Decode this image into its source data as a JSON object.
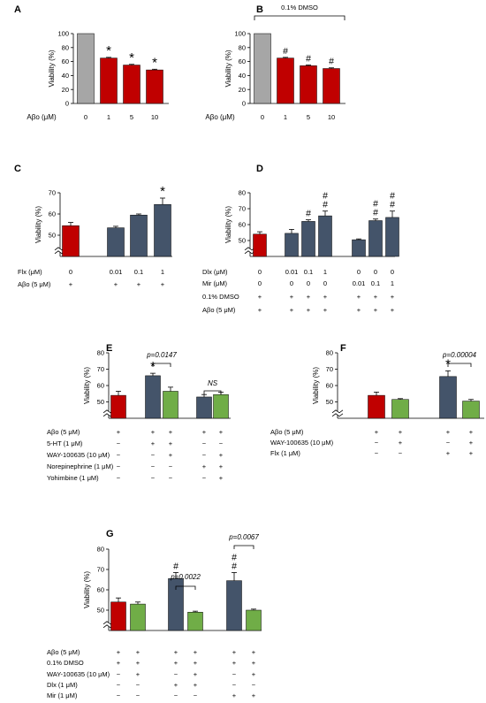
{
  "chart_data": [
    {
      "panel": "A",
      "type": "bar",
      "ylabel": "Viability (%)",
      "ylim": [
        0,
        100
      ],
      "yticks": [
        "0",
        "20",
        "40",
        "60",
        "80",
        "100"
      ],
      "xlabel": "Aβo (μM)",
      "categories": [
        "0",
        "1",
        "5",
        "10"
      ],
      "values": [
        100,
        65,
        55,
        48
      ],
      "errors": [
        0,
        1,
        1,
        1
      ],
      "colors": [
        "#a6a6a6",
        "#c00000",
        "#c00000",
        "#c00000"
      ],
      "marks": [
        "",
        "*",
        "*",
        "*"
      ]
    },
    {
      "panel": "B",
      "type": "bar",
      "ylabel": "Viability (%)",
      "ylim": [
        0,
        100
      ],
      "yticks": [
        "0",
        "20",
        "40",
        "60",
        "80",
        "100"
      ],
      "xlabel": "Aβo (μM)",
      "categories": [
        "0",
        "1",
        "5",
        "10"
      ],
      "values": [
        100,
        65,
        54,
        50
      ],
      "errors": [
        0,
        1,
        1,
        1
      ],
      "colors": [
        "#a6a6a6",
        "#c00000",
        "#c00000",
        "#c00000"
      ],
      "marks": [
        "",
        "#",
        "#",
        "#"
      ],
      "bracket_label": "0.1% DMSO"
    },
    {
      "panel": "C",
      "type": "bar",
      "ylabel": "Viability (%)",
      "ylim": [
        40,
        70
      ],
      "axis_break": true,
      "yticks": [
        "50",
        "60",
        "70"
      ],
      "values": [
        54.5,
        53.5,
        59.5,
        64.5
      ],
      "errors": [
        1.5,
        0.7,
        0.5,
        3
      ],
      "colors": [
        "#c00000",
        "#44546a",
        "#44546a",
        "#44546a"
      ],
      "marks": [
        "",
        "",
        "",
        "*"
      ],
      "condition_rows": [
        {
          "label": "Flx (μM)",
          "values": [
            "0",
            "0.01",
            "0.1",
            "1"
          ]
        },
        {
          "label": "Aβo (5 μM)",
          "values": [
            "+",
            "+",
            "+",
            "+"
          ]
        }
      ]
    },
    {
      "panel": "D",
      "type": "bar",
      "ylabel": "Viability (%)",
      "ylim": [
        40,
        80
      ],
      "axis_break": true,
      "yticks": [
        "50",
        "60",
        "70",
        "80"
      ],
      "values": [
        54,
        54.5,
        62,
        65.5,
        50.5,
        62.5,
        64.5
      ],
      "errors": [
        1.5,
        2.5,
        1,
        3,
        0.5,
        1,
        4
      ],
      "colors": [
        "#c00000",
        "#44546a",
        "#44546a",
        "#44546a",
        "#44546a",
        "#44546a",
        "#44546a"
      ],
      "marks": [
        "",
        "",
        "#",
        "##",
        "",
        "##",
        "##"
      ],
      "condition_rows": [
        {
          "label": "Dlx (μM)",
          "values": [
            "0",
            "0.01",
            "0.1",
            "1",
            "0",
            "0",
            "0"
          ]
        },
        {
          "label": "Mir (μM)",
          "values": [
            "0",
            "0",
            "0",
            "0",
            "0.01",
            "0.1",
            "1"
          ]
        },
        {
          "label": "0.1% DMSO",
          "values": [
            "+",
            "+",
            "+",
            "+",
            "+",
            "+",
            "+"
          ]
        },
        {
          "label": "Aβo (5 μM)",
          "values": [
            "+",
            "+",
            "+",
            "+",
            "+",
            "+",
            "+"
          ]
        }
      ]
    },
    {
      "panel": "E",
      "type": "bar",
      "ylabel": "Viability (%)",
      "ylim": [
        40,
        80
      ],
      "axis_break": true,
      "yticks": [
        "50",
        "60",
        "70",
        "80"
      ],
      "values": [
        54,
        66,
        56.5,
        53,
        54.5
      ],
      "errors": [
        2.5,
        1.5,
        2.5,
        1.5,
        1.5
      ],
      "colors": [
        "#c00000",
        "#44546a",
        "#70ad47",
        "#44546a",
        "#70ad47"
      ],
      "marks": [
        "",
        "*",
        "",
        "",
        ""
      ],
      "annotations": [
        {
          "text": "p=0.0147",
          "from": 1,
          "to": 2
        },
        {
          "text": "NS",
          "from": 3,
          "to": 4
        }
      ],
      "condition_rows": [
        {
          "label": "Aβo (5 μM)",
          "values": [
            "+",
            "+",
            "+",
            "+",
            "+"
          ]
        },
        {
          "label": "5-HT (1 μM)",
          "values": [
            "−",
            "+",
            "+",
            "−",
            "−"
          ]
        },
        {
          "label": "WAY-100635 (10 μM)",
          "values": [
            "−",
            "−",
            "+",
            "−",
            "+"
          ]
        },
        {
          "label": "Norepinephrine (1 μM)",
          "values": [
            "−",
            "−",
            "−",
            "+",
            "+"
          ]
        },
        {
          "label": "Yohimbine (1 μM)",
          "values": [
            "−",
            "−",
            "−",
            "−",
            "+"
          ]
        }
      ]
    },
    {
      "panel": "F",
      "type": "bar",
      "ylabel": "Viability (%)",
      "ylim": [
        40,
        80
      ],
      "axis_break": true,
      "yticks": [
        "50",
        "60",
        "70",
        "80"
      ],
      "values": [
        54,
        51.5,
        65.5,
        50.5
      ],
      "errors": [
        2,
        0.5,
        3.5,
        1
      ],
      "colors": [
        "#c00000",
        "#70ad47",
        "#44546a",
        "#70ad47"
      ],
      "marks": [
        "",
        "",
        "*",
        ""
      ],
      "annotations": [
        {
          "text": "p=0.00004",
          "from": 2,
          "to": 3
        }
      ],
      "condition_rows": [
        {
          "label": "Aβo (5 μM)",
          "values": [
            "+",
            "+",
            "+",
            "+"
          ]
        },
        {
          "label": "WAY-100635 (10 μM)",
          "values": [
            "−",
            "+",
            "−",
            "+"
          ]
        },
        {
          "label": "Flx (1 μM)",
          "values": [
            "−",
            "−",
            "+",
            "+"
          ]
        }
      ]
    },
    {
      "panel": "G",
      "type": "bar",
      "ylabel": "Viability (%)",
      "ylim": [
        40,
        80
      ],
      "axis_break": true,
      "yticks": [
        "50",
        "60",
        "70",
        "80"
      ],
      "values": [
        54,
        53,
        65.5,
        49,
        64.5,
        50
      ],
      "errors": [
        2,
        1,
        3,
        0.5,
        4,
        0.5
      ],
      "colors": [
        "#c00000",
        "#70ad47",
        "#44546a",
        "#70ad47",
        "#44546a",
        "#70ad47"
      ],
      "marks": [
        "",
        "",
        "#",
        "",
        "##",
        ""
      ],
      "annotations": [
        {
          "text": "p=0.0022",
          "from": 2,
          "to": 3
        },
        {
          "text": "p=0.0067",
          "from": 4,
          "to": 5
        }
      ],
      "condition_rows": [
        {
          "label": "Aβo (5 μM)",
          "values": [
            "+",
            "+",
            "+",
            "+",
            "+",
            "+"
          ]
        },
        {
          "label": "0.1% DMSO",
          "values": [
            "+",
            "+",
            "+",
            "+",
            "+",
            "+"
          ]
        },
        {
          "label": "WAY-100635 (10 μM)",
          "values": [
            "−",
            "+",
            "−",
            "+",
            "−",
            "+"
          ]
        },
        {
          "label": "Dlx (1 μM)",
          "values": [
            "−",
            "−",
            "+",
            "+",
            "−",
            "−"
          ]
        },
        {
          "label": "Mir (1 μM)",
          "values": [
            "−",
            "−",
            "−",
            "−",
            "+",
            "+"
          ]
        }
      ]
    }
  ]
}
